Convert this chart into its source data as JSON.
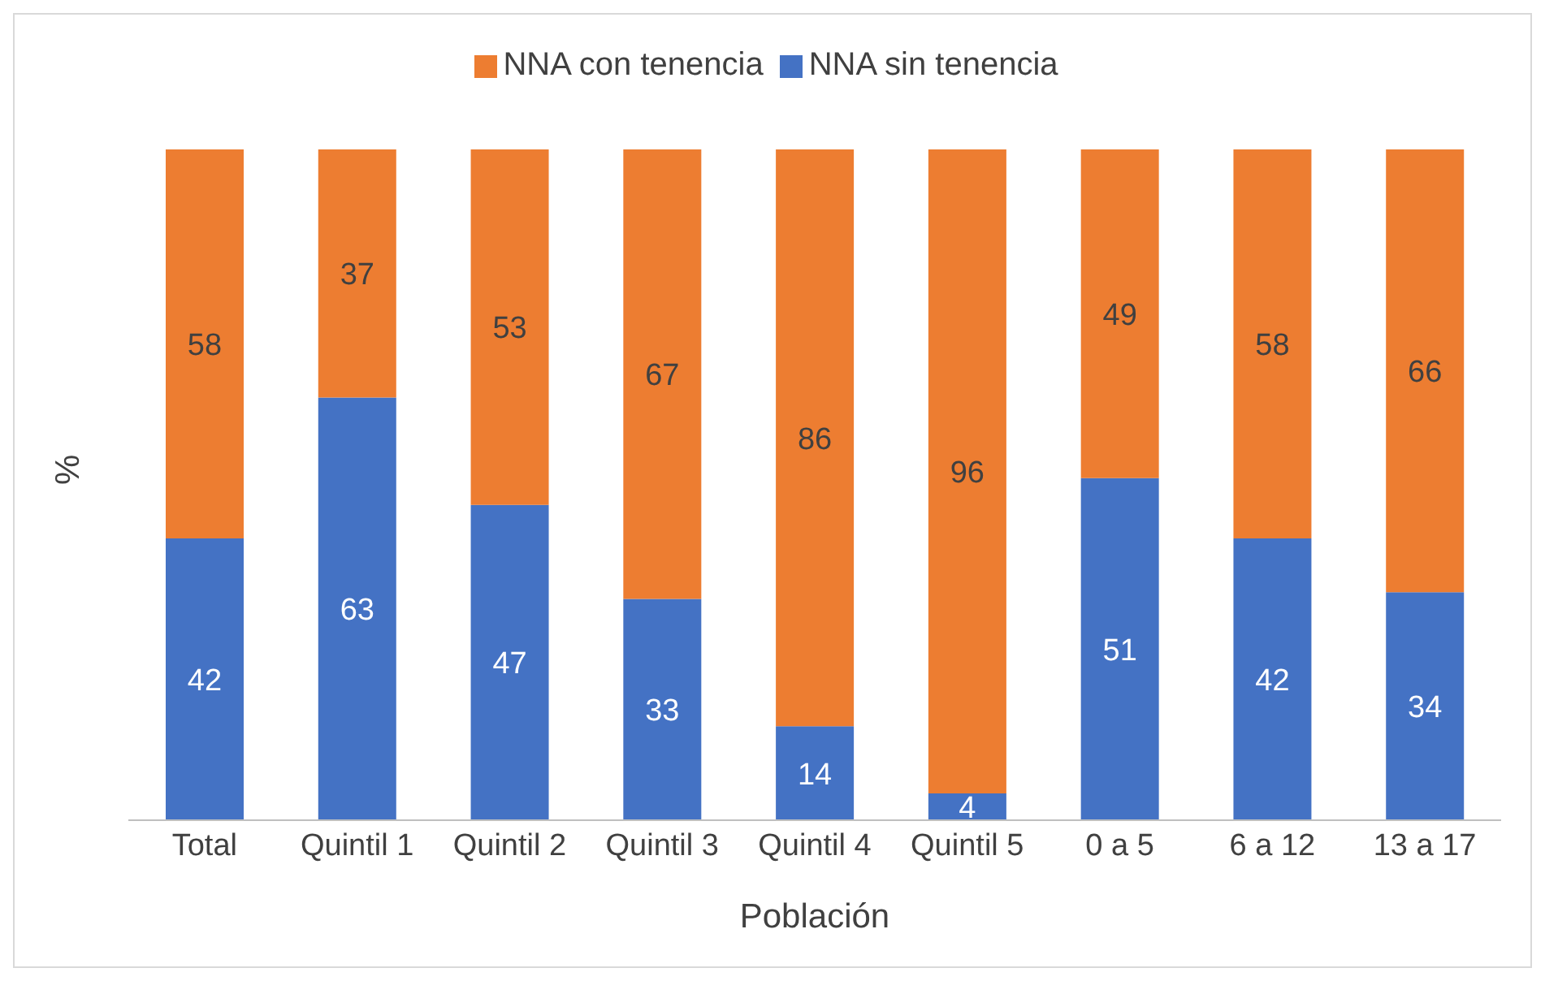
{
  "chart_data": {
    "type": "bar",
    "xlabel": "Población",
    "ylabel": "%",
    "categories": [
      "Total",
      "Quintil 1",
      "Quintil 2",
      "Quintil 3",
      "Quintil 4",
      "Quintil 5",
      "0 a 5",
      "6 a 12",
      "13 a 17"
    ],
    "series": [
      {
        "name": "NNA sin tenencia",
        "color": "#4472c4",
        "values": [
          42,
          63,
          47,
          33,
          14,
          4,
          51,
          42,
          34
        ]
      },
      {
        "name": "NNA con tenencia",
        "color": "#ed7d31",
        "values": [
          58,
          37,
          53,
          67,
          86,
          96,
          49,
          58,
          66
        ]
      }
    ],
    "stacked": true,
    "data_labels": true,
    "legend": "top",
    "grid": false,
    "tick_labels": "x"
  }
}
